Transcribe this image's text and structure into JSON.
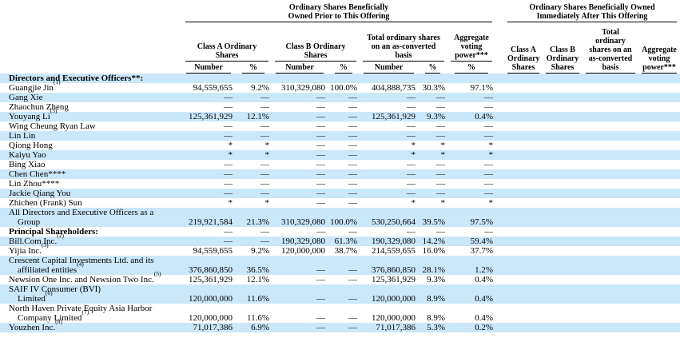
{
  "header": {
    "prior_group": "Ordinary Shares Beneficially\nOwned Prior to This Offering",
    "after_group": "Ordinary Shares Beneficially Owned\nImmediately After This Offering",
    "col_class_a": "Class A Ordinary Shares",
    "col_class_b": "Class B Ordinary Shares",
    "col_total": "Total ordinary shares on an as-converted basis",
    "col_aggregate": "Aggregate voting power***",
    "number_label": "Number",
    "percent_label": "%"
  },
  "table": {
    "rows": [
      {
        "bold": true,
        "label": [
          {
            "t": "Directors and Executive Officers**:"
          }
        ],
        "values": [
          "",
          "",
          "",
          "",
          "",
          "",
          ""
        ]
      },
      {
        "bold": false,
        "label": [
          {
            "t": "Guangjie Jin",
            "s": "(1)"
          }
        ],
        "values": [
          "94,559,655",
          "9.2%",
          "310,329,080",
          "100.0%",
          "404,888,735",
          "30.3%",
          "97.1%"
        ]
      },
      {
        "bold": false,
        "label": [
          {
            "t": "Gang Xie"
          }
        ],
        "values": [
          "—",
          "—",
          "—",
          "—",
          "—",
          "—",
          "—"
        ]
      },
      {
        "bold": false,
        "label": [
          {
            "t": "Zhaochun Zheng"
          }
        ],
        "values": [
          "—",
          "—",
          "—",
          "—",
          "—",
          "—",
          "—"
        ]
      },
      {
        "bold": false,
        "label": [
          {
            "t": "Youyang Li",
            "s": "(5)"
          }
        ],
        "values": [
          "125,361,929",
          "12.1%",
          "—",
          "—",
          "125,361,929",
          "9.3%",
          "0.4%"
        ]
      },
      {
        "bold": false,
        "label": [
          {
            "t": "Wing Cheung Ryan Law"
          }
        ],
        "values": [
          "—",
          "—",
          "—",
          "—",
          "—",
          "—",
          "—"
        ]
      },
      {
        "bold": false,
        "label": [
          {
            "t": "Lin Lin"
          }
        ],
        "values": [
          "—",
          "—",
          "—",
          "—",
          "—",
          "—",
          "—"
        ]
      },
      {
        "bold": false,
        "label": [
          {
            "t": "Qiong Hong"
          }
        ],
        "values": [
          "*",
          "*",
          "—",
          "—",
          "*",
          "*",
          "*"
        ]
      },
      {
        "bold": false,
        "label": [
          {
            "t": "Kaiyu Yao"
          }
        ],
        "values": [
          "*",
          "*",
          "—",
          "—",
          "*",
          "*",
          "*"
        ]
      },
      {
        "bold": false,
        "label": [
          {
            "t": "Bing Xiao"
          }
        ],
        "values": [
          "—",
          "—",
          "—",
          "—",
          "—",
          "—",
          "—"
        ]
      },
      {
        "bold": false,
        "label": [
          {
            "t": "Chen Chen****"
          }
        ],
        "values": [
          "—",
          "—",
          "—",
          "—",
          "—",
          "—",
          "—"
        ]
      },
      {
        "bold": false,
        "label": [
          {
            "t": "Lin Zhou****"
          }
        ],
        "values": [
          "—",
          "—",
          "—",
          "—",
          "—",
          "—",
          "—"
        ]
      },
      {
        "bold": false,
        "label": [
          {
            "t": "Jackie Qiang You"
          }
        ],
        "values": [
          "—",
          "—",
          "—",
          "—",
          "—",
          "—",
          "—"
        ]
      },
      {
        "bold": false,
        "label": [
          {
            "t": "Zhichen (Frank) Sun"
          }
        ],
        "values": [
          "*",
          "*",
          "—",
          "—",
          "*",
          "*",
          "*"
        ]
      },
      {
        "bold": false,
        "label": [
          {
            "t": "All Directors and Executive Officers as a"
          },
          {
            "t": "Group",
            "indent": true
          }
        ],
        "values": [
          "219,921,584",
          "21.3%",
          "310,329,080",
          "100.0%",
          "530,250,664",
          "39.5%",
          "97.5%"
        ]
      },
      {
        "bold": true,
        "label": [
          {
            "t": "Principal Shareholders:"
          }
        ],
        "values": [
          "—",
          "—",
          "—",
          "—",
          "—",
          "—",
          "—"
        ]
      },
      {
        "bold": false,
        "label": [
          {
            "t": "Bill.Com Inc.",
            "s": "(2)"
          }
        ],
        "values": [
          "—",
          "—",
          "190,329,080",
          "61.3%",
          "190,329,080",
          "14.2%",
          "59.4%"
        ]
      },
      {
        "bold": false,
        "label": [
          {
            "t": "Yijia Inc.",
            "s": "(3)"
          }
        ],
        "values": [
          "94,559,655",
          "9.2%",
          "120,000,000",
          "38.7%",
          "214,559,655",
          "16.0%",
          "37.7%"
        ]
      },
      {
        "bold": false,
        "label": [
          {
            "t": "Crescent Capital Investments Ltd. and its"
          },
          {
            "t": "affiliated entities",
            "s": "(4)",
            "indent": true
          }
        ],
        "values": [
          "376,860,850",
          "36.5%",
          "—",
          "—",
          "376,860,850",
          "28.1%",
          "1.2%"
        ]
      },
      {
        "bold": false,
        "label": [
          {
            "t": "Newsion One Inc. and Newsion Two Inc.",
            "s": "(5)"
          }
        ],
        "values": [
          "125,361,929",
          "12.1%",
          "—",
          "—",
          "125,361,929",
          "9.3%",
          "0.4%"
        ]
      },
      {
        "bold": false,
        "label": [
          {
            "t": "SAIF IV Consumer (BVI)"
          },
          {
            "t": "Limited",
            "s": "(6)",
            "indent": true
          }
        ],
        "values": [
          "120,000,000",
          "11.6%",
          "—",
          "—",
          "120,000,000",
          "8.9%",
          "0.4%"
        ]
      },
      {
        "bold": false,
        "label": [
          {
            "t": "North Haven Private Equity Asia Harbor"
          },
          {
            "t": "Company Limited",
            "s": "(7)",
            "indent": true
          }
        ],
        "values": [
          "120,000,000",
          "11.6%",
          "—",
          "—",
          "120,000,000",
          "8.9%",
          "0.4%"
        ]
      },
      {
        "bold": false,
        "label": [
          {
            "t": "Youzhen Inc.",
            "s": "(8)"
          }
        ],
        "values": [
          "71,017,386",
          "6.9%",
          "—",
          "—",
          "71,017,386",
          "5.3%",
          "0.2%"
        ]
      }
    ]
  }
}
